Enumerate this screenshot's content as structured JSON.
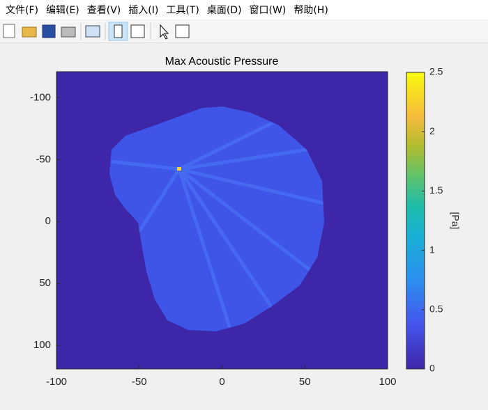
{
  "menu": [
    "文件(F)",
    "编辑(E)",
    "查看(V)",
    "插入(I)",
    "工具(T)",
    "桌面(D)",
    "窗口(W)",
    "帮助(H)"
  ],
  "chart_data": {
    "type": "heatmap",
    "title": "Max Acoustic Pressure",
    "xlim": [
      -100,
      100
    ],
    "xticks": [
      -100,
      -50,
      0,
      50,
      100
    ],
    "ylim": [
      -121,
      119
    ],
    "yticks": [
      -100,
      -50,
      0,
      50,
      100
    ],
    "y_reversed": true,
    "colorbar": {
      "label": "[Pa]",
      "lim": [
        0,
        2.5
      ],
      "ticks": [
        0,
        0.5,
        1,
        1.5,
        2,
        2.5
      ]
    }
  }
}
